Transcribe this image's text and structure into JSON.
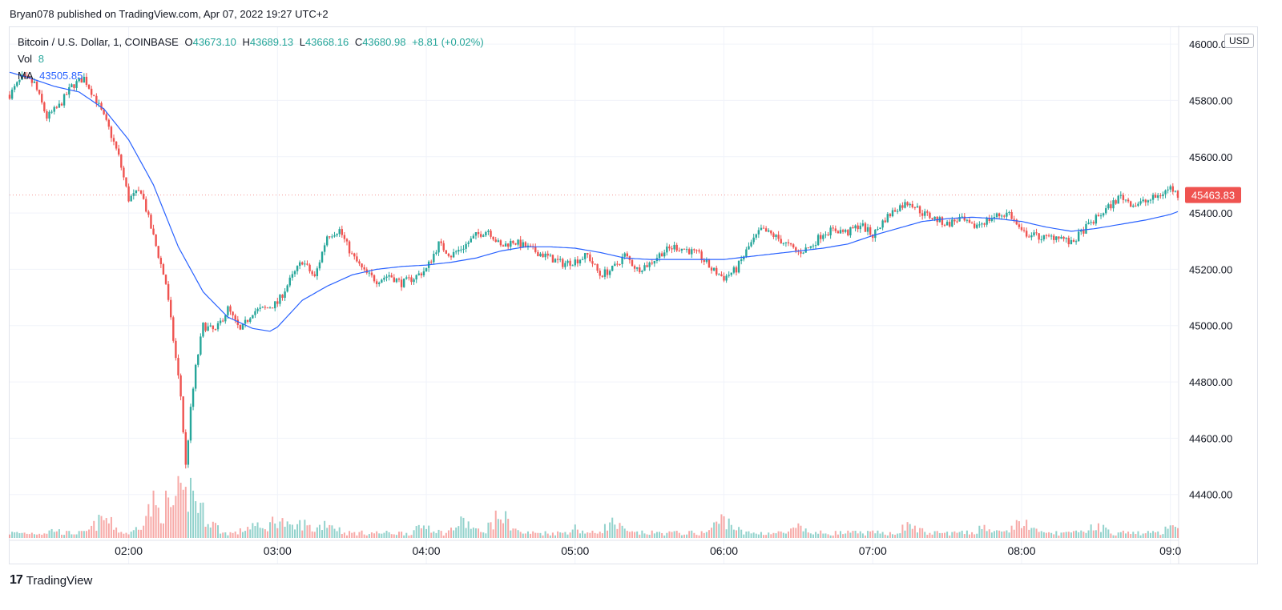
{
  "header": {
    "published": "Bryan078 published on TradingView.com, Apr 07, 2022 19:27 UTC+2"
  },
  "legend": {
    "symbol": "Bitcoin / U.S. Dollar, 1, COINBASE",
    "o_label": "O",
    "o_value": "43673.10",
    "h_label": "H",
    "h_value": "43689.13",
    "l_label": "L",
    "l_value": "43668.16",
    "c_label": "C",
    "c_value": "43680.98",
    "change": "+8.81 (+0.02%)",
    "vol_label": "Vol",
    "vol_value": "8",
    "ma_label": "MA",
    "ma_value": "43505.85"
  },
  "currency_button": "USD",
  "last_price_label": "45463.83",
  "brand": {
    "logo": "17",
    "name": "TradingView"
  },
  "colors": {
    "up": "#26a69a",
    "down": "#ef5350",
    "ma": "#2962ff",
    "grid": "#f0f3fa",
    "axis_text": "#131722"
  },
  "chart_data": {
    "type": "candlestick",
    "x_ticks": [
      "02:00",
      "03:00",
      "04:00",
      "05:00",
      "06:00",
      "07:00",
      "08:00",
      "09:0"
    ],
    "y_ticks": [
      "46000.00",
      "45800.00",
      "45600.00",
      "45400.00",
      "45200.00",
      "45000.00",
      "44800.00",
      "44600.00",
      "44400.00"
    ],
    "ylim": [
      44240,
      46060
    ],
    "time_range": [
      "01:12",
      "09:03"
    ],
    "price_path": [
      [
        "01:12",
        45820
      ],
      [
        "01:17",
        45880
      ],
      [
        "01:22",
        45860
      ],
      [
        "01:27",
        45740
      ],
      [
        "01:32",
        45780
      ],
      [
        "01:37",
        45850
      ],
      [
        "01:42",
        45880
      ],
      [
        "01:47",
        45800
      ],
      [
        "01:52",
        45700
      ],
      [
        "01:56",
        45600
      ],
      [
        "02:00",
        45450
      ],
      [
        "02:05",
        45480
      ],
      [
        "02:08",
        45380
      ],
      [
        "02:12",
        45250
      ],
      [
        "02:15",
        45150
      ],
      [
        "02:18",
        44950
      ],
      [
        "02:21",
        44750
      ],
      [
        "02:23",
        44500
      ],
      [
        "02:25",
        44700
      ],
      [
        "02:27",
        44850
      ],
      [
        "02:30",
        45000
      ],
      [
        "02:35",
        44980
      ],
      [
        "02:40",
        45060
      ],
      [
        "02:45",
        44980
      ],
      [
        "02:50",
        45050
      ],
      [
        "02:55",
        45060
      ],
      [
        "03:00",
        45080
      ],
      [
        "03:05",
        45160
      ],
      [
        "03:10",
        45230
      ],
      [
        "03:15",
        45170
      ],
      [
        "03:20",
        45320
      ],
      [
        "03:25",
        45340
      ],
      [
        "03:30",
        45250
      ],
      [
        "03:35",
        45190
      ],
      [
        "03:40",
        45160
      ],
      [
        "03:45",
        45180
      ],
      [
        "03:50",
        45150
      ],
      [
        "03:55",
        45170
      ],
      [
        "04:00",
        45200
      ],
      [
        "04:05",
        45290
      ],
      [
        "04:10",
        45250
      ],
      [
        "04:15",
        45280
      ],
      [
        "04:20",
        45320
      ],
      [
        "04:25",
        45340
      ],
      [
        "04:30",
        45280
      ],
      [
        "04:35",
        45300
      ],
      [
        "04:40",
        45280
      ],
      [
        "04:45",
        45260
      ],
      [
        "04:50",
        45240
      ],
      [
        "04:55",
        45220
      ],
      [
        "05:00",
        45230
      ],
      [
        "05:05",
        45250
      ],
      [
        "05:10",
        45180
      ],
      [
        "05:15",
        45200
      ],
      [
        "05:20",
        45250
      ],
      [
        "05:25",
        45200
      ],
      [
        "05:30",
        45220
      ],
      [
        "05:35",
        45260
      ],
      [
        "05:40",
        45280
      ],
      [
        "05:45",
        45270
      ],
      [
        "05:50",
        45250
      ],
      [
        "05:55",
        45200
      ],
      [
        "06:00",
        45170
      ],
      [
        "06:05",
        45200
      ],
      [
        "06:10",
        45280
      ],
      [
        "06:15",
        45340
      ],
      [
        "06:20",
        45320
      ],
      [
        "06:25",
        45290
      ],
      [
        "06:30",
        45260
      ],
      [
        "06:35",
        45280
      ],
      [
        "06:40",
        45330
      ],
      [
        "06:45",
        45340
      ],
      [
        "06:50",
        45330
      ],
      [
        "06:55",
        45360
      ],
      [
        "07:00",
        45320
      ],
      [
        "07:05",
        45380
      ],
      [
        "07:10",
        45420
      ],
      [
        "07:15",
        45440
      ],
      [
        "07:20",
        45400
      ],
      [
        "07:25",
        45380
      ],
      [
        "07:30",
        45360
      ],
      [
        "07:35",
        45380
      ],
      [
        "07:40",
        45350
      ],
      [
        "07:45",
        45370
      ],
      [
        "07:50",
        45390
      ],
      [
        "07:55",
        45400
      ],
      [
        "08:00",
        45330
      ],
      [
        "08:05",
        45320
      ],
      [
        "08:10",
        45310
      ],
      [
        "08:15",
        45320
      ],
      [
        "08:20",
        45290
      ],
      [
        "08:25",
        45340
      ],
      [
        "08:30",
        45380
      ],
      [
        "08:35",
        45420
      ],
      [
        "08:40",
        45460
      ],
      [
        "08:45",
        45430
      ],
      [
        "08:50",
        45440
      ],
      [
        "08:55",
        45460
      ],
      [
        "09:00",
        45490
      ],
      [
        "09:03",
        45464
      ]
    ],
    "ma_path": [
      [
        "01:12",
        45900
      ],
      [
        "01:20",
        45880
      ],
      [
        "01:30",
        45850
      ],
      [
        "01:40",
        45830
      ],
      [
        "01:50",
        45770
      ],
      [
        "02:00",
        45660
      ],
      [
        "02:10",
        45500
      ],
      [
        "02:20",
        45280
      ],
      [
        "02:30",
        45120
      ],
      [
        "02:40",
        45030
      ],
      [
        "02:50",
        44990
      ],
      [
        "02:57",
        44980
      ],
      [
        "03:00",
        44995
      ],
      [
        "03:10",
        45090
      ],
      [
        "03:20",
        45140
      ],
      [
        "03:30",
        45180
      ],
      [
        "03:40",
        45200
      ],
      [
        "03:50",
        45210
      ],
      [
        "04:00",
        45215
      ],
      [
        "04:10",
        45225
      ],
      [
        "04:20",
        45240
      ],
      [
        "04:30",
        45265
      ],
      [
        "04:40",
        45280
      ],
      [
        "04:50",
        45280
      ],
      [
        "05:00",
        45275
      ],
      [
        "05:10",
        45260
      ],
      [
        "05:20",
        45240
      ],
      [
        "05:30",
        45235
      ],
      [
        "05:40",
        45235
      ],
      [
        "05:50",
        45235
      ],
      [
        "06:00",
        45235
      ],
      [
        "06:10",
        45245
      ],
      [
        "06:20",
        45255
      ],
      [
        "06:30",
        45265
      ],
      [
        "06:40",
        45275
      ],
      [
        "06:50",
        45290
      ],
      [
        "07:00",
        45320
      ],
      [
        "07:10",
        45345
      ],
      [
        "07:20",
        45370
      ],
      [
        "07:30",
        45380
      ],
      [
        "07:40",
        45385
      ],
      [
        "07:50",
        45380
      ],
      [
        "08:00",
        45370
      ],
      [
        "08:10",
        45350
      ],
      [
        "08:20",
        45335
      ],
      [
        "08:30",
        45345
      ],
      [
        "08:40",
        45360
      ],
      [
        "08:50",
        45375
      ],
      [
        "09:00",
        45395
      ],
      [
        "09:03",
        45405
      ]
    ],
    "volume_peaks": [
      [
        "01:30",
        5
      ],
      [
        "01:50",
        12
      ],
      [
        "02:10",
        20
      ],
      [
        "02:15",
        20
      ],
      [
        "02:20",
        25
      ],
      [
        "02:25",
        30
      ],
      [
        "02:30",
        15
      ],
      [
        "02:50",
        8
      ],
      [
        "03:00",
        12
      ],
      [
        "03:10",
        9
      ],
      [
        "03:20",
        10
      ],
      [
        "04:00",
        8
      ],
      [
        "04:15",
        10
      ],
      [
        "04:30",
        14
      ],
      [
        "05:00",
        6
      ],
      [
        "05:15",
        9
      ],
      [
        "06:00",
        12
      ],
      [
        "06:30",
        6
      ],
      [
        "07:15",
        8
      ],
      [
        "07:45",
        7
      ],
      [
        "08:00",
        10
      ],
      [
        "08:30",
        8
      ],
      [
        "09:00",
        6
      ]
    ],
    "volume_max": 30
  }
}
